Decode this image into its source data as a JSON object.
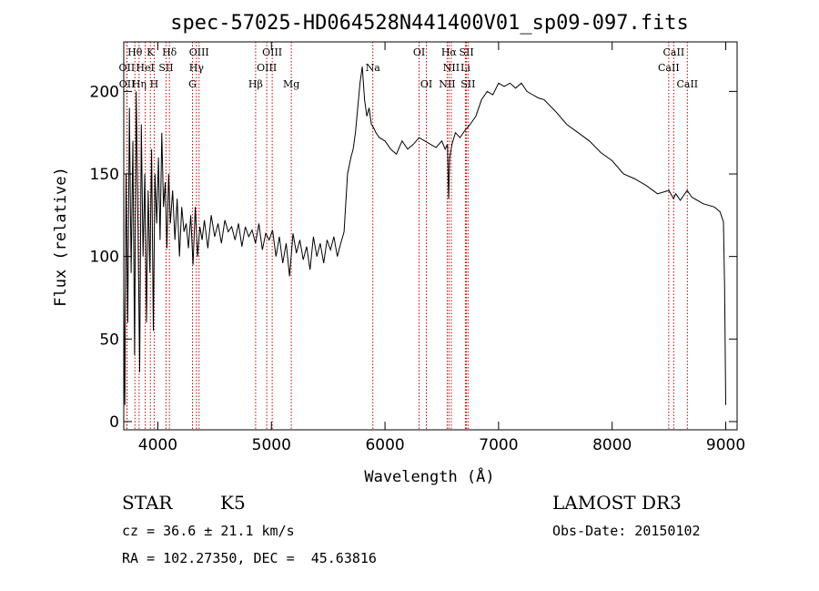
{
  "chart_data": {
    "type": "line",
    "title": "spec-57025-HD064528N441400V01_sp09-097.fits",
    "xlabel": "Wavelength (Å)",
    "ylabel": "Flux (relative)",
    "xlim": [
      3700,
      9100
    ],
    "ylim": [
      -5,
      230
    ],
    "xticks": [
      4000,
      5000,
      6000,
      7000,
      8000,
      9000
    ],
    "yticks": [
      0,
      50,
      100,
      150,
      200
    ],
    "grid": false,
    "legend": "none",
    "series": [
      {
        "name": "flux",
        "color": "#000000",
        "x": [
          3700,
          3710,
          3720,
          3735,
          3750,
          3765,
          3780,
          3795,
          3810,
          3825,
          3840,
          3855,
          3870,
          3885,
          3900,
          3915,
          3930,
          3945,
          3960,
          3975,
          3990,
          4005,
          4020,
          4035,
          4050,
          4065,
          4080,
          4095,
          4110,
          4130,
          4150,
          4170,
          4190,
          4210,
          4230,
          4250,
          4270,
          4290,
          4310,
          4330,
          4350,
          4370,
          4390,
          4410,
          4440,
          4470,
          4500,
          4530,
          4560,
          4590,
          4620,
          4650,
          4680,
          4710,
          4740,
          4770,
          4800,
          4830,
          4860,
          4890,
          4920,
          4950,
          4980,
          5010,
          5040,
          5070,
          5100,
          5130,
          5160,
          5190,
          5220,
          5250,
          5280,
          5310,
          5340,
          5370,
          5400,
          5430,
          5460,
          5490,
          5520,
          5550,
          5580,
          5610,
          5640,
          5670,
          5700,
          5720,
          5740,
          5760,
          5780,
          5800,
          5820,
          5840,
          5860,
          5880,
          5900,
          5920,
          5950,
          6000,
          6050,
          6100,
          6150,
          6200,
          6250,
          6300,
          6350,
          6400,
          6450,
          6500,
          6530,
          6550,
          6560,
          6570,
          6590,
          6620,
          6660,
          6700,
          6750,
          6800,
          6850,
          6900,
          6950,
          7000,
          7050,
          7100,
          7150,
          7200,
          7250,
          7300,
          7350,
          7400,
          7500,
          7600,
          7700,
          7800,
          7900,
          8000,
          8100,
          8200,
          8300,
          8400,
          8500,
          8540,
          8560,
          8600,
          8660,
          8700,
          8800,
          8900,
          8950,
          8980,
          8990,
          9000
        ],
        "y": [
          80,
          10,
          150,
          60,
          190,
          90,
          170,
          40,
          200,
          120,
          30,
          180,
          100,
          150,
          60,
          140,
          90,
          165,
          55,
          150,
          120,
          160,
          110,
          175,
          130,
          145,
          105,
          150,
          120,
          140,
          110,
          135,
          100,
          130,
          115,
          120,
          105,
          125,
          95,
          130,
          100,
          118,
          110,
          122,
          105,
          125,
          112,
          120,
          108,
          122,
          115,
          118,
          110,
          120,
          106,
          118,
          112,
          116,
          108,
          120,
          104,
          114,
          110,
          116,
          100,
          112,
          96,
          108,
          88,
          114,
          102,
          110,
          98,
          106,
          92,
          112,
          100,
          108,
          96,
          110,
          104,
          112,
          100,
          108,
          115,
          150,
          160,
          165,
          175,
          190,
          205,
          215,
          195,
          185,
          190,
          180,
          178,
          175,
          172,
          170,
          165,
          162,
          170,
          165,
          168,
          172,
          170,
          168,
          166,
          170,
          165,
          168,
          135,
          160,
          168,
          175,
          172,
          176,
          180,
          185,
          195,
          200,
          198,
          205,
          203,
          205,
          202,
          205,
          200,
          198,
          196,
          195,
          188,
          180,
          175,
          170,
          163,
          158,
          150,
          147,
          143,
          138,
          140,
          135,
          138,
          134,
          140,
          136,
          132,
          130,
          127,
          121,
          80,
          10
        ]
      }
    ],
    "annotations": [
      {
        "label": "Hθ",
        "x": 3798,
        "row": 0
      },
      {
        "label": "K",
        "x": 3934,
        "row": 0
      },
      {
        "label": "Hδ",
        "x": 4102,
        "row": 0
      },
      {
        "label": "OIII",
        "x": 4363,
        "row": 0
      },
      {
        "label": "OIII",
        "x": 5007,
        "row": 0
      },
      {
        "label": "OI",
        "x": 6300,
        "row": 0
      },
      {
        "label": "Hα",
        "x": 6563,
        "row": 0
      },
      {
        "label": "SII",
        "x": 6717,
        "row": 0
      },
      {
        "label": "CaII",
        "x": 8542,
        "row": 0
      },
      {
        "label": "OII",
        "x": 3727,
        "row": 1
      },
      {
        "label": "HeI",
        "x": 3889,
        "row": 1
      },
      {
        "label": "SII",
        "x": 4072,
        "row": 1
      },
      {
        "label": "Hγ",
        "x": 4340,
        "row": 1
      },
      {
        "label": "OIII",
        "x": 4959,
        "row": 1
      },
      {
        "label": "Na",
        "x": 5893,
        "row": 1
      },
      {
        "label": "NII",
        "x": 6584,
        "row": 1
      },
      {
        "label": "Li",
        "x": 6708,
        "row": 1
      },
      {
        "label": "CaII",
        "x": 8498,
        "row": 1
      },
      {
        "label": "OII",
        "x": 3729,
        "row": 2
      },
      {
        "label": "Hη",
        "x": 3835,
        "row": 2
      },
      {
        "label": "H",
        "x": 3968,
        "row": 2
      },
      {
        "label": "G",
        "x": 4305,
        "row": 2
      },
      {
        "label": "Hβ",
        "x": 4861,
        "row": 2
      },
      {
        "label": "Mg",
        "x": 5175,
        "row": 2
      },
      {
        "label": "OI",
        "x": 6364,
        "row": 2
      },
      {
        "label": "NII",
        "x": 6548,
        "row": 2
      },
      {
        "label": "SII",
        "x": 6731,
        "row": 2
      },
      {
        "label": "CaII",
        "x": 8662,
        "row": 2
      }
    ],
    "line_color": "#cc0000"
  },
  "info": {
    "object_class": "STAR",
    "subclass": "K5",
    "survey": "LAMOST DR3",
    "redshift": "cz = 36.6 ± 21.1 km/s",
    "obs_date": "Obs-Date: 20150102",
    "coordinates": "RA = 102.27350, DEC =  45.63816"
  }
}
